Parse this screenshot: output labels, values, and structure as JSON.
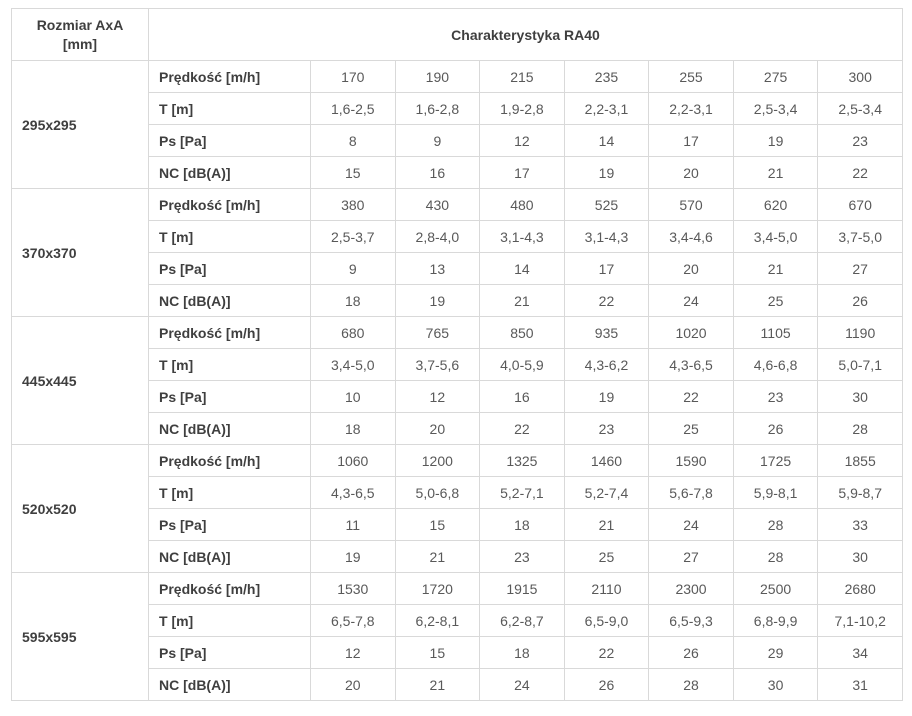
{
  "chart_data": {
    "type": "table",
    "title": "Charakterystyka RA40",
    "corner_header": [
      "Rozmiar AxA",
      "[mm]"
    ],
    "row_labels": [
      "Prędkość [m/h]",
      "T [m]",
      "Ps [Pa]",
      "NC [dB(A)]"
    ],
    "groups": [
      {
        "size": "295x295",
        "rows": [
          [
            "170",
            "190",
            "215",
            "235",
            "255",
            "275",
            "300"
          ],
          [
            "1,6-2,5",
            "1,6-2,8",
            "1,9-2,8",
            "2,2-3,1",
            "2,2-3,1",
            "2,5-3,4",
            "2,5-3,4"
          ],
          [
            "8",
            "9",
            "12",
            "14",
            "17",
            "19",
            "23"
          ],
          [
            "15",
            "16",
            "17",
            "19",
            "20",
            "21",
            "22"
          ]
        ]
      },
      {
        "size": "370x370",
        "rows": [
          [
            "380",
            "430",
            "480",
            "525",
            "570",
            "620",
            "670"
          ],
          [
            "2,5-3,7",
            "2,8-4,0",
            "3,1-4,3",
            "3,1-4,3",
            "3,4-4,6",
            "3,4-5,0",
            "3,7-5,0"
          ],
          [
            "9",
            "13",
            "14",
            "17",
            "20",
            "21",
            "27"
          ],
          [
            "18",
            "19",
            "21",
            "22",
            "24",
            "25",
            "26"
          ]
        ]
      },
      {
        "size": "445x445",
        "rows": [
          [
            "680",
            "765",
            "850",
            "935",
            "1020",
            "1105",
            "1190"
          ],
          [
            "3,4-5,0",
            "3,7-5,6",
            "4,0-5,9",
            "4,3-6,2",
            "4,3-6,5",
            "4,6-6,8",
            "5,0-7,1"
          ],
          [
            "10",
            "12",
            "16",
            "19",
            "22",
            "23",
            "30"
          ],
          [
            "18",
            "20",
            "22",
            "23",
            "25",
            "26",
            "28"
          ]
        ]
      },
      {
        "size": "520x520",
        "rows": [
          [
            "1060",
            "1200",
            "1325",
            "1460",
            "1590",
            "1725",
            "1855"
          ],
          [
            "4,3-6,5",
            "5,0-6,8",
            "5,2-7,1",
            "5,2-7,4",
            "5,6-7,8",
            "5,9-8,1",
            "5,9-8,7"
          ],
          [
            "11",
            "15",
            "18",
            "21",
            "24",
            "28",
            "33"
          ],
          [
            "19",
            "21",
            "23",
            "25",
            "27",
            "28",
            "30"
          ]
        ]
      },
      {
        "size": "595x595",
        "rows": [
          [
            "1530",
            "1720",
            "1915",
            "2110",
            "2300",
            "2500",
            "2680"
          ],
          [
            "6,5-7,8",
            "6,2-8,1",
            "6,2-8,7",
            "6,5-9,0",
            "6,5-9,3",
            "6,8-9,9",
            "7,1-10,2"
          ],
          [
            "12",
            "15",
            "18",
            "22",
            "26",
            "29",
            "34"
          ],
          [
            "20",
            "21",
            "24",
            "26",
            "28",
            "30",
            "31"
          ]
        ]
      }
    ],
    "layout": {
      "columns_per_group": 7,
      "rows_per_group": 4,
      "grid": "on"
    }
  },
  "colors": {
    "border": "#d9d9d9",
    "label_text": "#3f3f3f",
    "value_text": "#595959",
    "background": "#ffffff"
  }
}
